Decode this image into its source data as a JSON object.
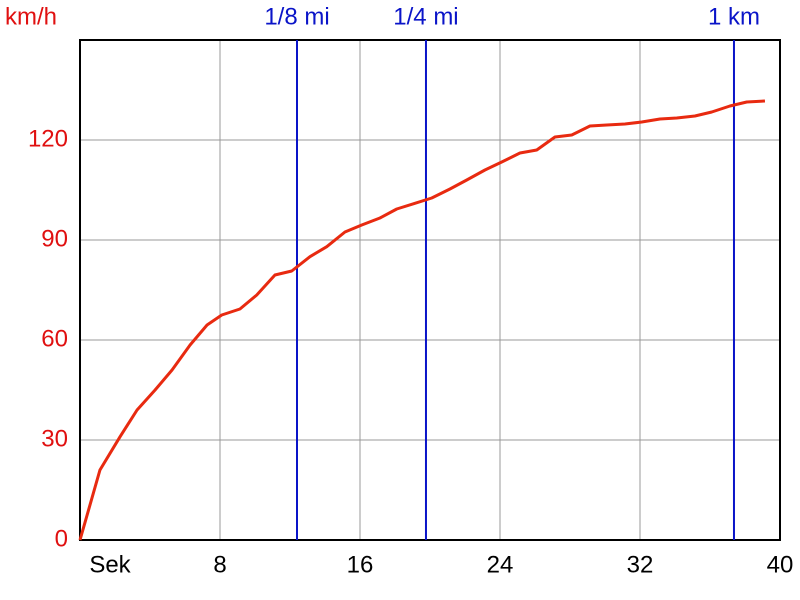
{
  "chart_data": {
    "type": "line",
    "y_label": "km/h",
    "x": [
      0,
      1.14,
      2.29,
      3.26,
      4.29,
      5.26,
      6.29,
      7.26,
      8.1,
      9.14,
      10.1,
      11.14,
      12.1,
      13.14,
      14.1,
      15.14,
      16.1,
      17.14,
      18.1,
      19.14,
      20.1,
      21.14,
      22.1,
      23.14,
      24.1,
      25.14,
      26.1,
      27.14,
      28.1,
      29.14,
      30.1,
      31.14,
      32.1,
      33.14,
      34.1,
      35.14,
      36.1,
      37.14,
      38.1,
      39.14
    ],
    "series": [
      {
        "color": "#e82a10",
        "values": [
          0,
          21,
          31,
          39,
          45,
          51,
          58.5,
          64.5,
          67.5,
          69.3,
          73.5,
          79.5,
          80.7,
          85,
          88,
          92.4,
          94.5,
          96.6,
          99.3,
          101,
          102.6,
          105.3,
          108,
          111,
          113.4,
          116.1,
          117,
          120.9,
          121.5,
          124.2,
          124.5,
          124.8,
          125.4,
          126.3,
          126.6,
          127.2,
          128.4,
          130.2,
          131.4,
          131.7
        ]
      }
    ],
    "xlim": [
      0,
      40
    ],
    "xticks": [
      {
        "value": 0,
        "label": "Sek"
      },
      8,
      16,
      24,
      32,
      40
    ],
    "ylim": [
      0,
      150
    ],
    "yticks": [
      0,
      30,
      60,
      90,
      120
    ],
    "grid": true,
    "markers": [
      {
        "label": "1/8 mi",
        "x": 12.4
      },
      {
        "label": "1/4 mi",
        "x": 19.77
      },
      {
        "label": "1 km",
        "x": 37.37
      }
    ],
    "marker_color": "#0a14c8",
    "y_tick_color": "#e01010"
  }
}
